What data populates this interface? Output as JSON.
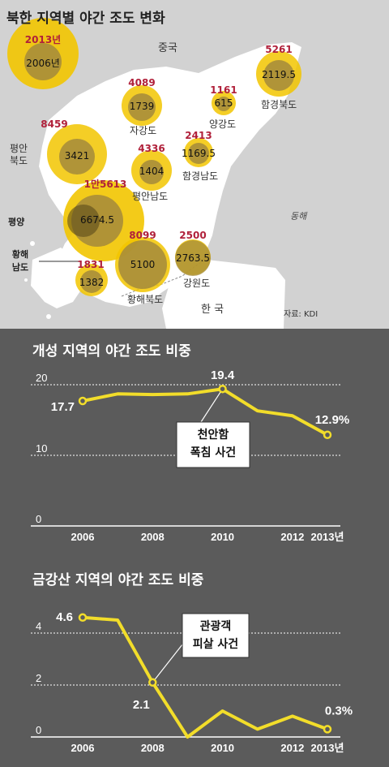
{
  "map": {
    "title": "북한 지역별 야간 조도 변화",
    "country_labels": {
      "china": "중국",
      "korea": "한 국"
    },
    "sea_label": "동해",
    "source": "자료: KDI",
    "legend": {
      "year_top": "2013년",
      "year_bottom": "2006년"
    },
    "regions": [
      {
        "name": "자강도",
        "v2013": "4089",
        "v2006": "1739"
      },
      {
        "name": "양강도",
        "v2013": "1161",
        "v2006": "615"
      },
      {
        "name": "함경북도",
        "v2013": "5261",
        "v2006": "2119.5"
      },
      {
        "name": "평안 북도",
        "v2013": "8459",
        "v2006": "3421"
      },
      {
        "name": "평안남도",
        "v2013": "4336",
        "v2006": "1404"
      },
      {
        "name": "함경남도",
        "v2013": "2413",
        "v2006": "1169.5"
      },
      {
        "name": "평양",
        "v2013": "1만5613",
        "v2006": "6674.5"
      },
      {
        "name": "황해북도",
        "v2013": "8099",
        "v2006": "5100"
      },
      {
        "name": "강원도",
        "v2013": "2500",
        "v2006": "2763.5"
      },
      {
        "name": "황해 남도",
        "v2013": "1831",
        "v2006": "1382"
      }
    ],
    "colors": {
      "outer": "#f2c500",
      "inner": "#a38a3c",
      "land": "#ffffff",
      "bg": "#d2d2d2"
    }
  },
  "chart_data": [
    {
      "type": "line",
      "title": "개성 지역의 야간 조도 비중",
      "x": [
        2006,
        2007,
        2008,
        2009,
        2010,
        2011,
        2012,
        2013
      ],
      "x_tick_labels": [
        "2006",
        "2008",
        "2010",
        "2012",
        "2013년"
      ],
      "x_tick_values": [
        2006,
        2008,
        2010,
        2012,
        2013
      ],
      "series": [
        {
          "values": [
            17.7,
            18.7,
            18.6,
            18.7,
            19.4,
            16.3,
            15.6,
            12.9
          ]
        }
      ],
      "ylim": [
        0,
        20
      ],
      "y_ticks": [
        "0",
        "10",
        "20"
      ],
      "y_tick_values": [
        0,
        10,
        20
      ],
      "data_labels": [
        {
          "x": 2006,
          "text": "17.7"
        },
        {
          "x": 2010,
          "text": "19.4"
        },
        {
          "x": 2013,
          "text": "12.9%"
        }
      ],
      "annotation": {
        "x": 2010,
        "lines": [
          "천안함",
          "폭침 사건"
        ]
      },
      "color": "#f2dd2a"
    },
    {
      "type": "line",
      "title": "금강산 지역의 야간 조도 비중",
      "x": [
        2006,
        2007,
        2008,
        2009,
        2010,
        2011,
        2012,
        2013
      ],
      "x_tick_labels": [
        "2006",
        "2008",
        "2010",
        "2012",
        "2013년"
      ],
      "x_tick_values": [
        2006,
        2008,
        2010,
        2012,
        2013
      ],
      "series": [
        {
          "values": [
            4.6,
            4.5,
            2.1,
            0.0,
            1.0,
            0.3,
            0.8,
            0.3
          ]
        }
      ],
      "ylim": [
        0,
        5
      ],
      "y_ticks": [
        "0",
        "2",
        "4"
      ],
      "y_tick_values": [
        0,
        2,
        4
      ],
      "data_labels": [
        {
          "x": 2006,
          "text": "4.6"
        },
        {
          "x": 2008,
          "text": "2.1"
        },
        {
          "x": 2013,
          "text": "0.3%"
        }
      ],
      "annotation": {
        "x": 2008,
        "lines": [
          "관광객",
          "피살 사건"
        ]
      },
      "color": "#f2dd2a"
    }
  ]
}
